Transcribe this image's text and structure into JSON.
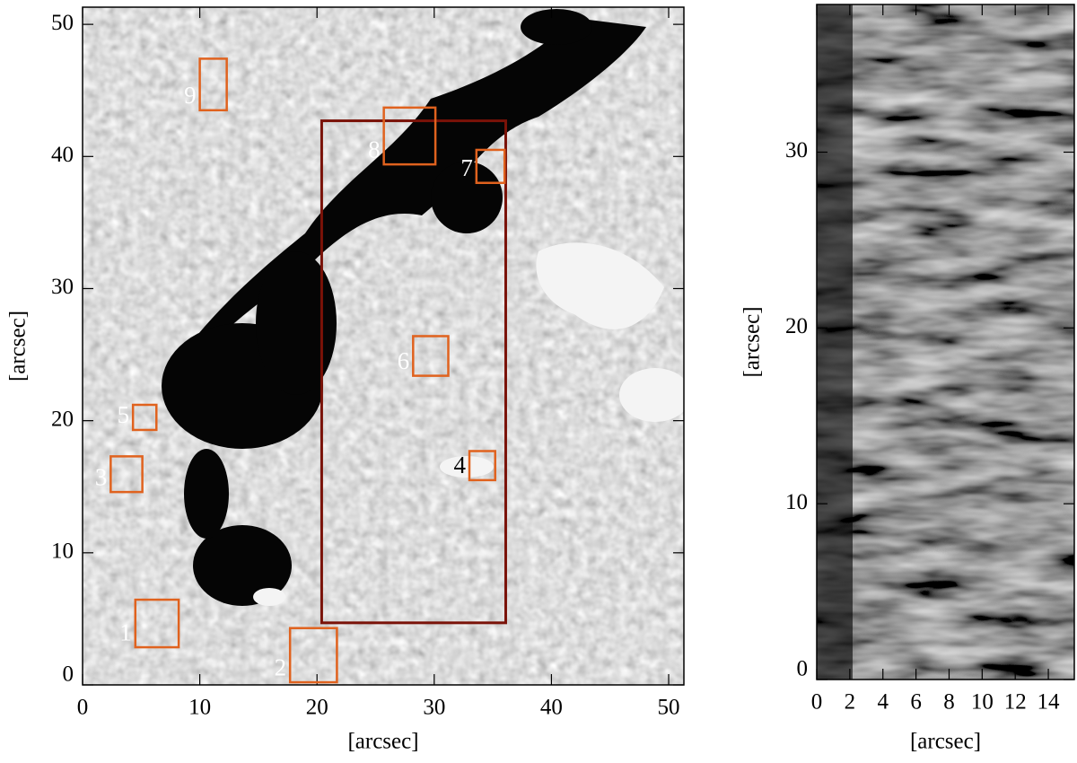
{
  "chart_data": [
    {
      "type": "image",
      "xlabel": "[arcsec]",
      "ylabel": "[arcsec]",
      "xlim": [
        0,
        51.3
      ],
      "ylim": [
        0,
        51.3
      ],
      "xticks": [
        0,
        10,
        20,
        30,
        40,
        50
      ],
      "yticks": [
        0,
        10,
        20,
        30,
        40,
        50
      ],
      "region_color": "#e0621e",
      "roi_color": "#7a1208",
      "roi": {
        "x": [
          20.4,
          36.1
        ],
        "y": [
          4.7,
          42.7
        ]
      },
      "regions": [
        {
          "label": "1",
          "x": [
            4.5,
            8.2
          ],
          "y": [
            2.85,
            6.45
          ],
          "label_color": "#ffffff"
        },
        {
          "label": "2",
          "x": [
            17.7,
            21.7
          ],
          "y": [
            0.2,
            4.3
          ],
          "label_color": "#ffffff"
        },
        {
          "label": "3",
          "x": [
            2.4,
            5.1
          ],
          "y": [
            14.6,
            17.3
          ],
          "label_color": "#ffffff"
        },
        {
          "label": "4",
          "x": [
            33.0,
            35.2
          ],
          "y": [
            15.5,
            17.7
          ],
          "label_color": "#000000"
        },
        {
          "label": "5",
          "x": [
            4.3,
            6.3
          ],
          "y": [
            19.3,
            21.2
          ],
          "label_color": "#ffffff"
        },
        {
          "label": "6",
          "x": [
            28.2,
            31.2
          ],
          "y": [
            23.4,
            26.4
          ],
          "label_color": "#ffffff"
        },
        {
          "label": "7",
          "x": [
            33.6,
            36.0
          ],
          "y": [
            38.0,
            40.5
          ],
          "label_color": "#ffffff"
        },
        {
          "label": "8",
          "x": [
            25.7,
            30.1
          ],
          "y": [
            39.4,
            43.7
          ],
          "label_color": "#ffffff"
        },
        {
          "label": "9",
          "x": [
            10.0,
            12.3
          ],
          "y": [
            43.5,
            47.4
          ],
          "label_color": "#ffffff"
        }
      ]
    },
    {
      "type": "image",
      "xlabel": "[arcsec]",
      "ylabel": "[arcsec]",
      "xlim": [
        0,
        15.57
      ],
      "ylim": [
        0,
        38.4
      ],
      "xticks": [
        0,
        2,
        4,
        6,
        8,
        10,
        12,
        14
      ],
      "yticks": [
        0,
        10,
        20,
        30
      ]
    }
  ]
}
